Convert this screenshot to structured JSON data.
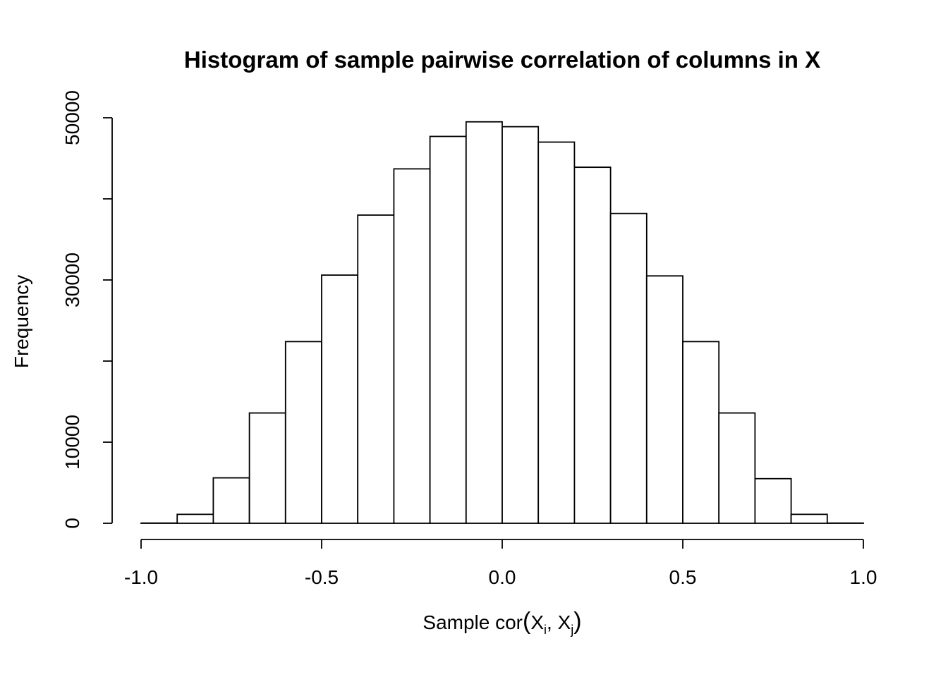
{
  "chart_data": {
    "type": "bar",
    "subtype": "histogram",
    "title": "Histogram of sample pairwise correlation of columns in X",
    "ylabel": "Frequency",
    "xlabel_plain": "Sample cor(X_i, X_j)",
    "xlabel_parts": [
      {
        "text": "Sample cor"
      },
      {
        "text": "(",
        "paren": true
      },
      {
        "text": "X"
      },
      {
        "text": "i",
        "sub": true
      },
      {
        "text": ", X"
      },
      {
        "text": "j",
        "sub": true
      },
      {
        "text": ")",
        "paren": true
      }
    ],
    "bin_start": -1.0,
    "bin_width": 0.1,
    "counts": [
      25,
      1100,
      5600,
      13600,
      22400,
      30600,
      38000,
      43700,
      47700,
      49500,
      48900,
      47000,
      43900,
      38200,
      30500,
      22400,
      13600,
      5500,
      1100,
      25
    ],
    "xlim": [
      -1.0,
      1.0
    ],
    "ylim": [
      0,
      50000
    ],
    "x_ticks": [
      {
        "value": -1.0,
        "label": "-1.0"
      },
      {
        "value": -0.5,
        "label": "-0.5"
      },
      {
        "value": 0.0,
        "label": "0.0"
      },
      {
        "value": 0.5,
        "label": "0.5"
      },
      {
        "value": 1.0,
        "label": "1.0"
      }
    ],
    "y_ticks": [
      {
        "value": 0,
        "label": "0"
      },
      {
        "value": 10000,
        "label": "10000"
      },
      {
        "value": 20000,
        "label": ""
      },
      {
        "value": 30000,
        "label": "30000"
      },
      {
        "value": 40000,
        "label": ""
      },
      {
        "value": 50000,
        "label": "50000"
      }
    ],
    "colors": {
      "bar_fill": "#ffffff",
      "bar_stroke": "#000000",
      "text": "#000000",
      "background": "#ffffff"
    },
    "grid": false,
    "legend": false
  }
}
